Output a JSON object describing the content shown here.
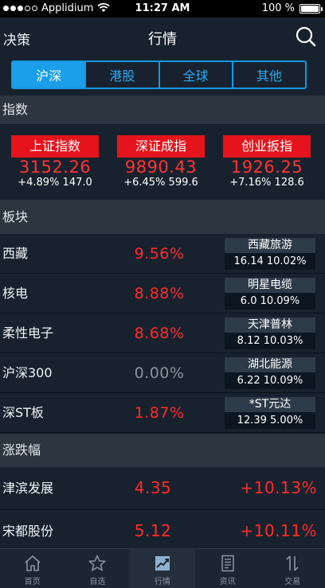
{
  "status_bar": {
    "carrier": "Applidium",
    "time": "11:27 AM",
    "battery": "100 %"
  },
  "nav": {
    "back_label": "决策",
    "title": "行情",
    "search_icon": "search-icon"
  },
  "market_tabs": [
    {
      "label": "沪深",
      "active": true
    },
    {
      "label": "港股",
      "active": false
    },
    {
      "label": "全球",
      "active": false
    },
    {
      "label": "其他",
      "active": false
    }
  ],
  "sections": {
    "indices": "指数",
    "sectors": "板块",
    "movers": "涨跌幅"
  },
  "indices": [
    {
      "name": "上证指数",
      "value": "3152.26",
      "change": "+4.89% 147.0"
    },
    {
      "name": "深证成指",
      "value": "9890.43",
      "change": "+6.45% 599.6"
    },
    {
      "name": "创业扳指",
      "value": "1926.25",
      "change": "+7.16% 128.6"
    }
  ],
  "sectors": [
    {
      "name": "西藏",
      "percent": "9.56%",
      "trend": "up",
      "top_stock": "西藏旅游",
      "top_stock_quote": "16.14 10.02%"
    },
    {
      "name": "核电",
      "percent": "8.88%",
      "trend": "up",
      "top_stock": "明星电缆",
      "top_stock_quote": "6.0 10.09%"
    },
    {
      "name": "柔性电子",
      "percent": "8.68%",
      "trend": "up",
      "top_stock": "天津普林",
      "top_stock_quote": "8.12 10.03%"
    },
    {
      "name": "沪深300",
      "percent": "0.00%",
      "trend": "flat",
      "top_stock": "湖北能源",
      "top_stock_quote": "6.22 10.09%"
    },
    {
      "name": "深ST板",
      "percent": "1.87%",
      "trend": "up",
      "top_stock": "*ST元达",
      "top_stock_quote": "12.39 5.00%"
    }
  ],
  "movers": [
    {
      "name": "津滨发展",
      "price": "4.35",
      "change": "+10.13%"
    },
    {
      "name": "宋都股份",
      "price": "5.12",
      "change": "+10.11%"
    }
  ],
  "tab_bar": [
    {
      "label": "首页",
      "icon": "home-icon",
      "active": false
    },
    {
      "label": "自选",
      "icon": "star-icon",
      "active": false
    },
    {
      "label": "行情",
      "icon": "chart-icon",
      "active": true
    },
    {
      "label": "资讯",
      "icon": "news-icon",
      "active": false
    },
    {
      "label": "交易",
      "icon": "trade-icon",
      "active": false
    }
  ],
  "colors": {
    "accent": "#1a9fe8",
    "up": "#ff2b2b",
    "flat": "#8a939c",
    "label_red": "#e5141c",
    "background": "#17222e"
  }
}
